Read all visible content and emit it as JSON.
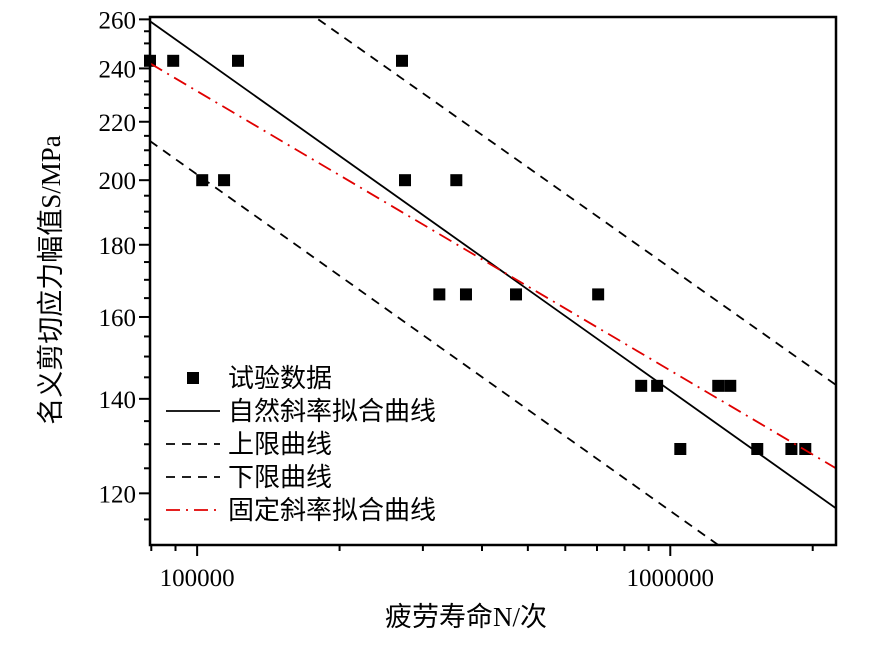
{
  "chart_data": {
    "type": "scatter",
    "title": "",
    "xlabel": "疲劳寿命N/次",
    "ylabel": "名义剪切应力幅值S/MPa",
    "xscale": "log",
    "yscale": "log",
    "xlim": [
      79500,
      2240000
    ],
    "ylim": [
      110.3,
      261
    ],
    "xticks": [
      100000,
      1000000
    ],
    "xtick_labels": [
      "100000",
      "1000000"
    ],
    "yticks": [
      120,
      140,
      160,
      180,
      200,
      220,
      240,
      260
    ],
    "ytick_labels": [
      "120",
      "140",
      "160",
      "180",
      "200",
      "220",
      "240",
      "260"
    ],
    "grid": false,
    "legend_position": "bottom-left",
    "series": [
      {
        "name": "试验数据",
        "kind": "marker",
        "color": "#000000",
        "points": [
          [
            79500,
            243
          ],
          [
            89000,
            243
          ],
          [
            122000,
            243
          ],
          [
            271000,
            243
          ],
          [
            102500,
            200
          ],
          [
            114000,
            200
          ],
          [
            275000,
            200
          ],
          [
            353000,
            200
          ],
          [
            325000,
            166
          ],
          [
            370000,
            166
          ],
          [
            472000,
            166
          ],
          [
            704000,
            166
          ],
          [
            868000,
            143
          ],
          [
            938000,
            143
          ],
          [
            1263000,
            143
          ],
          [
            1339000,
            143
          ],
          [
            1050000,
            129
          ],
          [
            1527000,
            129
          ],
          [
            1803000,
            129
          ],
          [
            1929000,
            129
          ]
        ]
      },
      {
        "name": "自然斜率拟合曲线",
        "kind": "solid",
        "color": "#000000",
        "points": [
          [
            79500,
            259.2
          ],
          [
            2240000,
            117.1
          ]
        ]
      },
      {
        "name": "上限曲线",
        "kind": "dashed",
        "color": "#000000",
        "points": [
          [
            180300,
            260
          ],
          [
            2240000,
            143.2
          ]
        ]
      },
      {
        "name": "下限曲线",
        "kind": "dashed",
        "color": "#000000",
        "points": [
          [
            79500,
            213.2
          ],
          [
            1263000,
            110.3
          ]
        ]
      },
      {
        "name": "固定斜率拟合曲线",
        "kind": "dashdot",
        "color": "#e00000",
        "points": [
          [
            79500,
            242
          ],
          [
            2240000,
            125
          ]
        ]
      }
    ]
  }
}
